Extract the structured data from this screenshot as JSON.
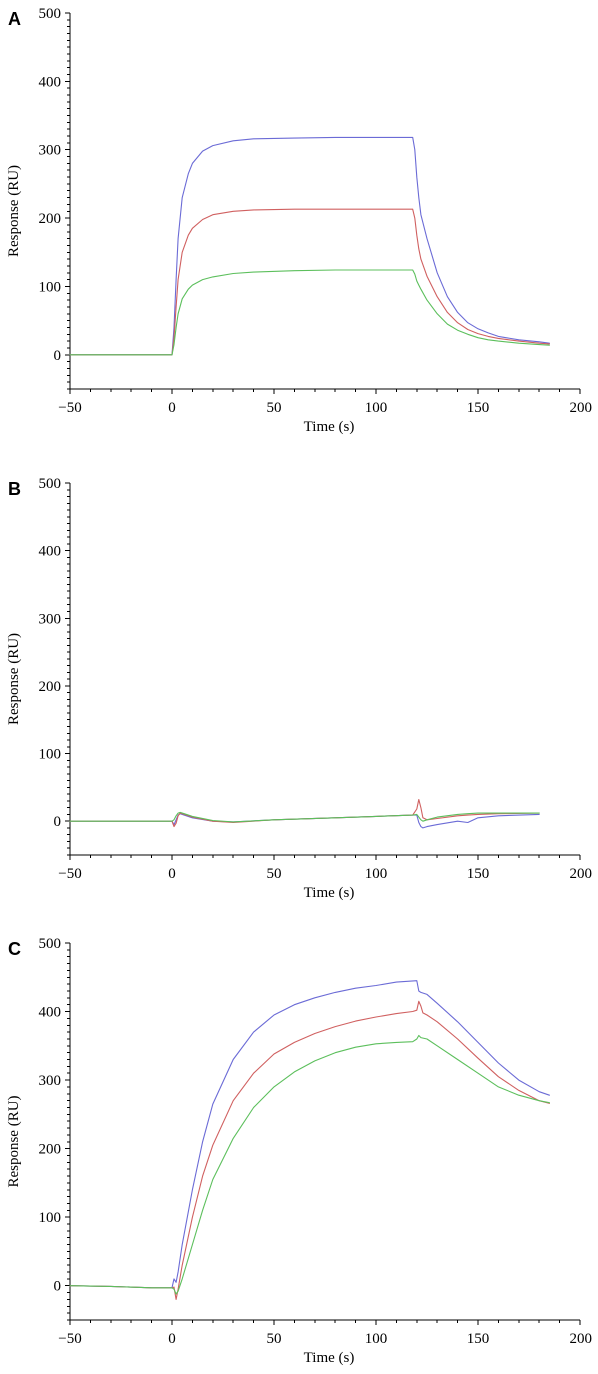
{
  "chart_data": [
    {
      "panel": "A",
      "type": "line",
      "title": "",
      "xlabel": "Time (s)",
      "ylabel": "Response (RU)",
      "xlim": [
        -50,
        200
      ],
      "ylim": [
        -50,
        500
      ],
      "x_ticks": [
        -50,
        0,
        50,
        100,
        150,
        200
      ],
      "y_ticks": [
        0,
        100,
        200,
        300,
        400,
        500
      ],
      "x_tick_labels": [
        "−50",
        "0",
        "50",
        "100",
        "150",
        "200"
      ],
      "y_tick_labels": [
        "0",
        "100",
        "200",
        "300",
        "400",
        "500"
      ],
      "grid": false,
      "series": [
        {
          "color": "#6b6bd6",
          "x": [
            -50,
            -20,
            0,
            1,
            2,
            3,
            5,
            8,
            10,
            15,
            20,
            30,
            40,
            60,
            80,
            100,
            118,
            119,
            120,
            121,
            122,
            125,
            130,
            135,
            140,
            145,
            150,
            155,
            160,
            170,
            180,
            185
          ],
          "y": [
            0,
            0,
            0,
            40,
            110,
            170,
            230,
            265,
            280,
            298,
            306,
            313,
            316,
            317,
            318,
            318,
            318,
            300,
            260,
            230,
            205,
            170,
            120,
            85,
            62,
            47,
            38,
            32,
            27,
            22,
            19,
            17
          ]
        },
        {
          "color": "#d06060",
          "x": [
            -50,
            -20,
            0,
            1,
            2,
            3,
            5,
            8,
            10,
            15,
            20,
            30,
            40,
            60,
            80,
            100,
            118,
            119,
            120,
            121,
            122,
            125,
            130,
            135,
            140,
            145,
            150,
            155,
            160,
            170,
            180,
            185
          ],
          "y": [
            0,
            0,
            0,
            25,
            70,
            110,
            150,
            175,
            185,
            198,
            205,
            210,
            212,
            213,
            213,
            213,
            213,
            200,
            175,
            155,
            140,
            115,
            85,
            62,
            47,
            37,
            31,
            27,
            24,
            20,
            17,
            16
          ]
        },
        {
          "color": "#5cbf5c",
          "x": [
            -50,
            -20,
            0,
            1,
            2,
            3,
            5,
            8,
            10,
            15,
            20,
            30,
            40,
            60,
            80,
            100,
            118,
            119,
            120,
            121,
            122,
            125,
            130,
            135,
            140,
            145,
            150,
            155,
            160,
            170,
            180,
            185
          ],
          "y": [
            0,
            0,
            0,
            15,
            40,
            60,
            82,
            96,
            102,
            110,
            114,
            119,
            121,
            123,
            124,
            124,
            124,
            118,
            108,
            102,
            96,
            80,
            60,
            45,
            36,
            30,
            25,
            22,
            20,
            17,
            15,
            14
          ]
        }
      ]
    },
    {
      "panel": "B",
      "type": "line",
      "title": "",
      "xlabel": "Time (s)",
      "ylabel": "Response (RU)",
      "xlim": [
        -50,
        200
      ],
      "ylim": [
        -50,
        500
      ],
      "x_ticks": [
        -50,
        0,
        50,
        100,
        150,
        200
      ],
      "y_ticks": [
        0,
        100,
        200,
        300,
        400,
        500
      ],
      "x_tick_labels": [
        "−50",
        "0",
        "50",
        "100",
        "150",
        "200"
      ],
      "y_tick_labels": [
        "0",
        "100",
        "200",
        "300",
        "400",
        "500"
      ],
      "grid": false,
      "series": [
        {
          "color": "#6b6bd6",
          "x": [
            -50,
            -20,
            0,
            1,
            2,
            3,
            4,
            6,
            10,
            20,
            30,
            50,
            80,
            100,
            118,
            120,
            121,
            122,
            123,
            125,
            130,
            140,
            145,
            150,
            160,
            180
          ],
          "y": [
            0,
            0,
            0,
            -5,
            2,
            9,
            11,
            9,
            5,
            0,
            -1,
            2,
            5,
            7,
            9,
            9,
            -2,
            -8,
            -10,
            -8,
            -5,
            0,
            -2,
            5,
            8,
            10
          ]
        },
        {
          "color": "#d06060",
          "x": [
            -50,
            -20,
            0,
            1,
            2,
            3,
            4,
            6,
            10,
            20,
            30,
            50,
            80,
            100,
            118,
            120,
            121,
            122,
            123,
            125,
            130,
            140,
            145,
            150,
            160,
            180
          ],
          "y": [
            0,
            0,
            0,
            -8,
            -3,
            8,
            12,
            10,
            6,
            0,
            -2,
            2,
            5,
            7,
            9,
            18,
            32,
            20,
            5,
            2,
            4,
            8,
            9,
            10,
            11,
            12
          ]
        },
        {
          "color": "#5cbf5c",
          "x": [
            -50,
            -20,
            0,
            1,
            2,
            3,
            4,
            6,
            10,
            20,
            30,
            50,
            80,
            100,
            118,
            120,
            121,
            122,
            123,
            125,
            130,
            140,
            145,
            150,
            160,
            180
          ],
          "y": [
            0,
            0,
            0,
            2,
            8,
            12,
            13,
            11,
            7,
            1,
            -1,
            2,
            5,
            7,
            9,
            10,
            6,
            2,
            0,
            2,
            6,
            10,
            11,
            12,
            12,
            12
          ]
        }
      ]
    },
    {
      "panel": "C",
      "type": "line",
      "title": "",
      "xlabel": "Time (s)",
      "ylabel": "Response (RU)",
      "xlim": [
        -50,
        200
      ],
      "ylim": [
        -50,
        500
      ],
      "x_ticks": [
        -50,
        0,
        50,
        100,
        150,
        200
      ],
      "y_ticks": [
        0,
        100,
        200,
        300,
        400,
        500
      ],
      "x_tick_labels": [
        "−50",
        "0",
        "50",
        "100",
        "150",
        "200"
      ],
      "y_tick_labels": [
        "0",
        "100",
        "200",
        "300",
        "400",
        "500"
      ],
      "grid": false,
      "series": [
        {
          "color": "#6b6bd6",
          "x": [
            -50,
            -30,
            -10,
            0,
            1,
            2,
            3,
            5,
            10,
            15,
            20,
            30,
            40,
            50,
            60,
            70,
            80,
            90,
            100,
            110,
            120,
            121,
            122,
            125,
            130,
            140,
            150,
            160,
            170,
            180,
            185
          ],
          "y": [
            0,
            -1,
            -3,
            -3,
            10,
            5,
            20,
            60,
            140,
            210,
            265,
            330,
            370,
            395,
            410,
            420,
            428,
            434,
            438,
            443,
            445,
            430,
            428,
            425,
            412,
            385,
            355,
            325,
            300,
            283,
            278
          ]
        },
        {
          "color": "#d06060",
          "x": [
            -50,
            -30,
            -10,
            0,
            1,
            2,
            3,
            5,
            10,
            15,
            20,
            30,
            40,
            50,
            60,
            70,
            80,
            90,
            100,
            110,
            118,
            120,
            121,
            122,
            123,
            125,
            130,
            140,
            150,
            160,
            170,
            180,
            185
          ],
          "y": [
            0,
            -1,
            -3,
            -3,
            -2,
            -20,
            -5,
            30,
            100,
            160,
            205,
            270,
            310,
            338,
            355,
            368,
            378,
            386,
            392,
            397,
            400,
            402,
            415,
            408,
            398,
            395,
            385,
            360,
            332,
            305,
            285,
            270,
            266
          ]
        },
        {
          "color": "#5cbf5c",
          "x": [
            -50,
            -30,
            -10,
            0,
            1,
            2,
            3,
            5,
            10,
            15,
            20,
            30,
            40,
            50,
            60,
            70,
            80,
            90,
            100,
            110,
            118,
            120,
            121,
            122,
            125,
            130,
            140,
            150,
            160,
            170,
            180,
            185
          ],
          "y": [
            0,
            -1,
            -3,
            -3,
            -5,
            -12,
            -8,
            10,
            60,
            110,
            155,
            215,
            260,
            290,
            312,
            328,
            340,
            348,
            353,
            355,
            356,
            360,
            365,
            362,
            360,
            350,
            330,
            310,
            290,
            278,
            270,
            267
          ]
        }
      ]
    }
  ]
}
